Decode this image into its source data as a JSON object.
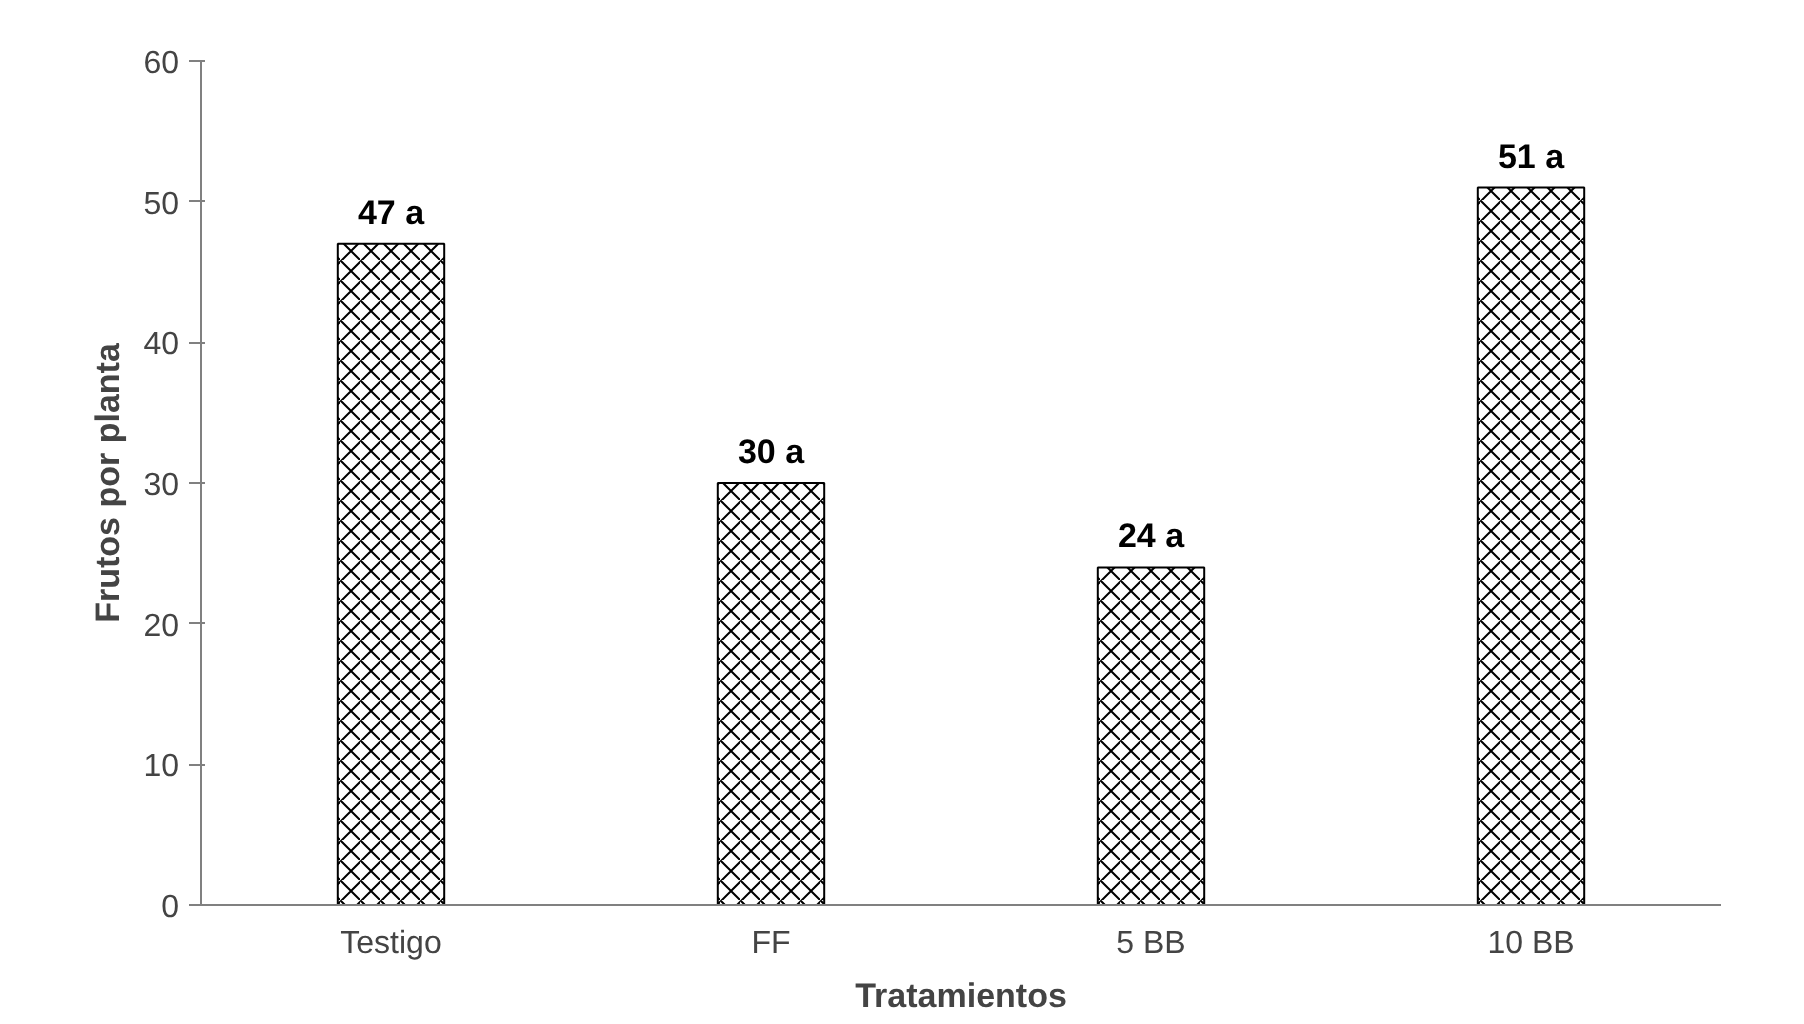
{
  "chart_data": {
    "type": "bar",
    "xlabel": "Tratamientos",
    "ylabel": "Frutos por planta",
    "categories": [
      "Testigo",
      "FF",
      "5 BB",
      "10 BB"
    ],
    "values": [
      47,
      30,
      24,
      51
    ],
    "value_labels": [
      "47 a",
      "30 a",
      "24 a",
      "51 a"
    ],
    "color": "#000000",
    "ylim": [
      0,
      60
    ],
    "yticks": [
      0,
      10,
      20,
      30,
      40,
      50,
      60
    ],
    "grid": false
  }
}
